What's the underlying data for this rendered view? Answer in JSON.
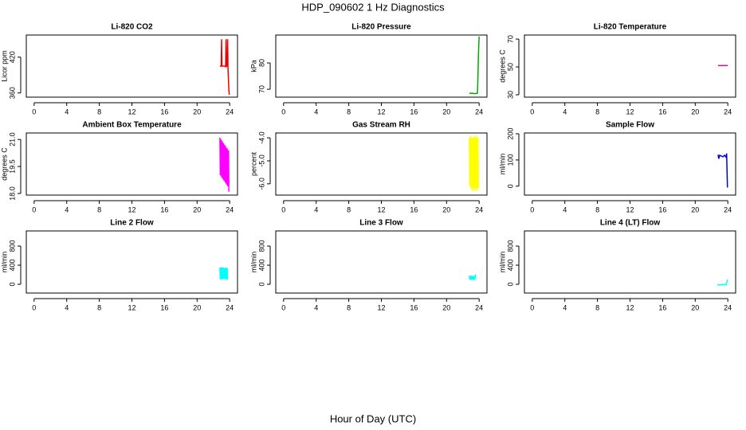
{
  "title": "HDP_090602  1 Hz Diagnostics",
  "xlabel": "Hour of Day (UTC)",
  "chart_data": [
    {
      "type": "line",
      "title": "Li-820 CO2",
      "ylabel": "Licor ppm",
      "xlim": [
        -0.96,
        24.96
      ],
      "xticks": [
        0,
        4,
        8,
        12,
        16,
        20,
        24
      ],
      "ylim": [
        353,
        457
      ],
      "yticks": [
        360,
        420
      ],
      "series": [
        {
          "color": "#ee0000",
          "x": [
            22.8,
            22.95,
            23.0,
            23.05,
            23.2,
            23.4,
            23.5,
            23.55,
            23.6,
            23.7,
            23.75,
            23.8,
            23.85,
            23.9,
            23.95
          ],
          "values": [
            405,
            405,
            450,
            405,
            405,
            405,
            404,
            450,
            405,
            405,
            450,
            400,
            380,
            365,
            357
          ]
        }
      ]
    },
    {
      "type": "line",
      "title": "Li-820 Pressure",
      "ylabel": "kPa",
      "xlim": [
        -0.96,
        24.96
      ],
      "xticks": [
        0,
        4,
        8,
        12,
        16,
        20,
        24
      ],
      "ylim": [
        67,
        90.6
      ],
      "yticks": [
        70,
        80
      ],
      "series": [
        {
          "color": "#00aa00",
          "x": [
            22.8,
            23.0,
            23.2,
            23.4,
            23.6,
            23.8,
            23.85,
            23.9,
            23.95,
            24.0
          ],
          "values": [
            68.6,
            68.4,
            68.5,
            68.3,
            68.4,
            68.5,
            75,
            82,
            87,
            90
          ]
        }
      ]
    },
    {
      "type": "line",
      "title": "Li-820 Temperature",
      "ylabel": "degrees C",
      "xlim": [
        -0.96,
        24.96
      ],
      "xticks": [
        0,
        4,
        8,
        12,
        16,
        20,
        24
      ],
      "ylim": [
        28.3,
        72.9
      ],
      "yticks": [
        30,
        50,
        70
      ],
      "series": [
        {
          "color": "#e0107a",
          "x": [
            22.8,
            23.2,
            23.6,
            24.0
          ],
          "values": [
            51,
            51,
            51,
            51
          ]
        }
      ]
    },
    {
      "type": "line",
      "title": "Ambient Box Temperature",
      "ylabel": "degrees C",
      "xlim": [
        -0.96,
        24.96
      ],
      "xticks": [
        0,
        4,
        8,
        12,
        16,
        20,
        24
      ],
      "ylim": [
        17.91,
        21.36
      ],
      "yticks": [
        {
          "value": 18,
          "label": "18.0"
        },
        {
          "value": 19.5,
          "label": "19.5"
        },
        {
          "value": 21,
          "label": "21.0"
        }
      ],
      "series": [
        {
          "color": "#ff00ff",
          "x": [
            22.8,
            22.85,
            22.95,
            23.0,
            23.1,
            23.15,
            23.25,
            23.3,
            23.4,
            23.45,
            23.55,
            23.6,
            23.7,
            23.75,
            23.85,
            23.9
          ],
          "values": [
            21.1,
            19.0,
            21.0,
            18.9,
            20.9,
            18.8,
            20.8,
            18.7,
            20.7,
            18.6,
            20.6,
            18.5,
            20.5,
            18.4,
            20.4,
            18.1
          ]
        }
      ]
    },
    {
      "type": "line",
      "title": "Gas Stream RH",
      "ylabel": "percent",
      "xlim": [
        -0.96,
        24.96
      ],
      "xticks": [
        0,
        4,
        8,
        12,
        16,
        20,
        24
      ],
      "ylim": [
        -6.49,
        -3.79
      ],
      "yticks": [
        {
          "value": -6,
          "label": "-6.0"
        },
        {
          "value": -5,
          "label": "-5.0"
        },
        {
          "value": -4,
          "label": "-4.0"
        }
      ],
      "series": [
        {
          "color": "#ffff00",
          "x": [
            22.8,
            22.85,
            22.95,
            23.0,
            23.1,
            23.15,
            23.25,
            23.3,
            23.4,
            23.45,
            23.55,
            23.6,
            23.7,
            23.75,
            23.85,
            23.9
          ],
          "values": [
            -4.0,
            -6.1,
            -3.9,
            -6.2,
            -4.0,
            -6.3,
            -4.0,
            -6.2,
            -3.9,
            -6.3,
            -4.0,
            -6.2,
            -3.9,
            -6.3,
            -4.0,
            -6.2
          ]
        }
      ]
    },
    {
      "type": "line",
      "title": "Sample Flow",
      "ylabel": "ml/min",
      "xlim": [
        -0.96,
        24.96
      ],
      "xticks": [
        0,
        4,
        8,
        12,
        16,
        20,
        24
      ],
      "ylim": [
        -34,
        203
      ],
      "yticks": [
        0,
        100,
        200
      ],
      "series": [
        {
          "color": "#0000dd",
          "x": [
            22.8,
            22.9,
            23.0,
            23.2,
            23.4,
            23.6,
            23.8,
            23.85,
            23.9,
            23.95
          ],
          "values": [
            120,
            105,
            118,
            115,
            112,
            118,
            110,
            125,
            60,
            -5
          ]
        }
      ]
    },
    {
      "type": "line",
      "title": "Line 2 Flow",
      "ylabel": "ml/min",
      "xlim": [
        -0.96,
        24.96
      ],
      "xticks": [
        0,
        4,
        8,
        12,
        16,
        20,
        24
      ],
      "ylim": [
        -183,
        1117
      ],
      "yticks": [
        0,
        400,
        800
      ],
      "series": [
        {
          "color": "#00ffff",
          "x": [
            22.8,
            22.85,
            22.95,
            23.0,
            23.1,
            23.15,
            23.25,
            23.3,
            23.4,
            23.45,
            23.55,
            23.6,
            23.7,
            23.75
          ],
          "values": [
            350,
            100,
            360,
            110,
            350,
            100,
            350,
            120,
            340,
            100,
            350,
            110,
            340,
            100
          ]
        }
      ]
    },
    {
      "type": "line",
      "title": "Line 3 Flow",
      "ylabel": "ml/min",
      "xlim": [
        -0.96,
        24.96
      ],
      "xticks": [
        0,
        4,
        8,
        12,
        16,
        20,
        24
      ],
      "ylim": [
        -183,
        1117
      ],
      "yticks": [
        0,
        400,
        800
      ],
      "series": [
        {
          "color": "#00ffff",
          "x": [
            22.8,
            22.85,
            22.95,
            23.0,
            23.1,
            23.15,
            23.25,
            23.3,
            23.4,
            23.45,
            23.55,
            23.6
          ],
          "values": [
            180,
            100,
            175,
            90,
            180,
            100,
            170,
            90,
            175,
            100,
            180,
            160
          ]
        }
      ]
    },
    {
      "type": "line",
      "title": "Line 4 (LT) Flow",
      "ylabel": "ml/min",
      "xlim": [
        -0.96,
        24.96
      ],
      "xticks": [
        0,
        4,
        8,
        12,
        16,
        20,
        24
      ],
      "ylim": [
        -183,
        1117
      ],
      "yticks": [
        0,
        400,
        800
      ],
      "series": [
        {
          "color": "#00ffff",
          "x": [
            22.7,
            23.0,
            23.3,
            23.6,
            23.8,
            23.85,
            23.9,
            23.95
          ],
          "values": [
            -10,
            -12,
            -8,
            -10,
            -10,
            20,
            60,
            100
          ]
        }
      ]
    }
  ]
}
